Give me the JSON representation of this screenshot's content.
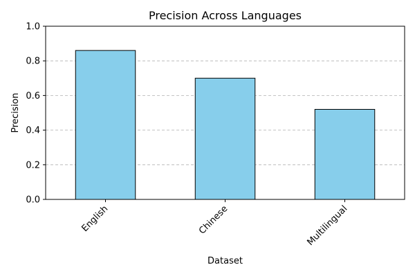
{
  "chart_data": {
    "type": "bar",
    "title": "Precision Across Languages",
    "xlabel": "Dataset",
    "ylabel": "Precision",
    "categories": [
      "English",
      "Chinese",
      "Multilingual"
    ],
    "values": [
      0.86,
      0.7,
      0.52
    ],
    "ylim": [
      0,
      1.0
    ],
    "yticks": [
      0.0,
      0.2,
      0.4,
      0.6,
      0.8,
      1.0
    ],
    "ytick_labels": [
      "0.0",
      "0.2",
      "0.4",
      "0.6",
      "0.8",
      "1.0"
    ],
    "grid": "y-dashed",
    "legend": "none",
    "bar_color": "#87ceeb",
    "bar_edge_color": "#000000",
    "xtick_rotation": 45
  }
}
